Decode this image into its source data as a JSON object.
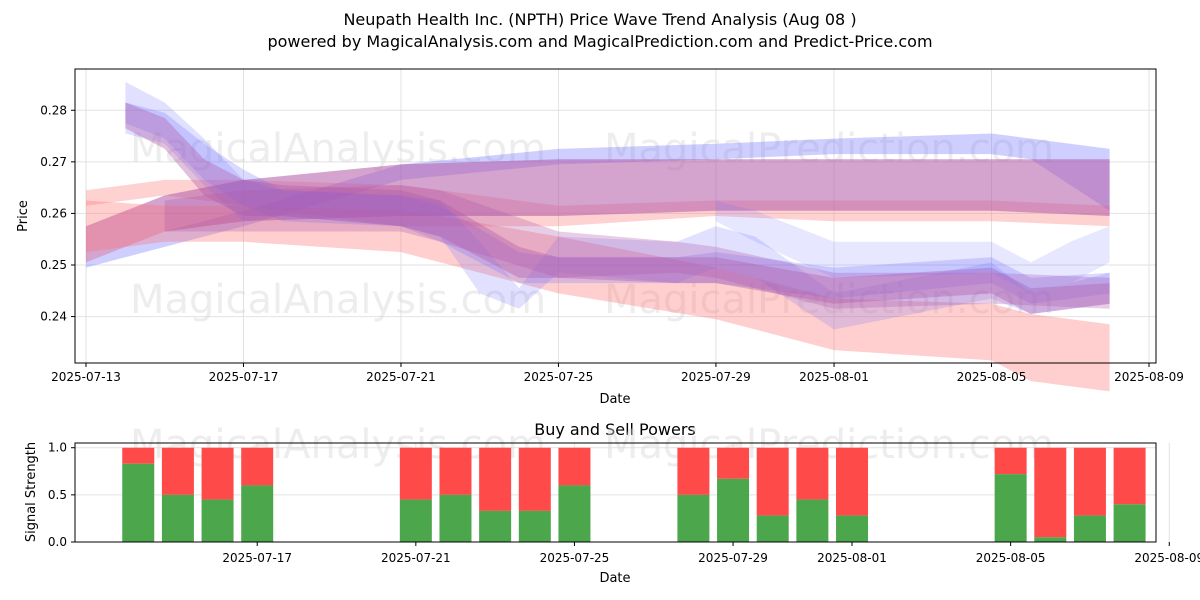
{
  "header": {
    "title": "Neupath Health Inc. (NPTH) Price Wave Trend Analysis (Aug 08 )",
    "subtitle": "powered by MagicalAnalysis.com and MagicalPrediction.com and Predict-Price.com"
  },
  "watermarks": [
    "MagicalAnalysis.com",
    "MagicalPrediction.com"
  ],
  "colors": {
    "buy": "#4ca64c",
    "sell": "#ff4a4a",
    "wave_blue": "#6b6bff",
    "wave_red": "#ff6b6b",
    "wave_purple": "#b05aa8"
  },
  "chart_data": [
    {
      "type": "area",
      "name": "price-wave",
      "xlabel": "Date",
      "ylabel": "Price",
      "x_ticks": [
        "2025-07-13",
        "2025-07-17",
        "2025-07-21",
        "2025-07-25",
        "2025-07-29",
        "2025-08-01",
        "2025-08-05",
        "2025-08-09"
      ],
      "y_ticks": [
        "0.24",
        "0.25",
        "0.26",
        "0.27",
        "0.28"
      ],
      "ylim": [
        0.231,
        0.288
      ],
      "grid": true,
      "bands": [
        {
          "color": "blue",
          "opacity": 0.32,
          "points": [
            [
              "2025-07-13",
              0.2505,
              0.2495
            ],
            [
              "2025-07-15",
              0.2565,
              0.2535
            ],
            [
              "2025-07-17",
              0.2605,
              0.2575
            ],
            [
              "2025-07-21",
              0.2695,
              0.2665
            ],
            [
              "2025-07-25",
              0.2725,
              0.2695
            ],
            [
              "2025-07-29",
              0.2735,
              0.2705
            ],
            [
              "2025-08-01",
              0.2745,
              0.2715
            ],
            [
              "2025-08-05",
              0.2755,
              0.2715
            ],
            [
              "2025-08-06",
              0.2745,
              0.2705
            ],
            [
              "2025-08-08",
              0.2725,
              0.2605
            ]
          ]
        },
        {
          "color": "red",
          "opacity": 0.3,
          "points": [
            [
              "2025-07-13",
              0.2645,
              0.2615
            ],
            [
              "2025-07-15",
              0.2665,
              0.2635
            ],
            [
              "2025-07-17",
              0.2665,
              0.2615
            ],
            [
              "2025-07-21",
              0.2655,
              0.2575
            ],
            [
              "2025-07-25",
              0.2615,
              0.2575
            ],
            [
              "2025-07-29",
              0.2625,
              0.2595
            ],
            [
              "2025-08-01",
              0.2625,
              0.2585
            ],
            [
              "2025-08-05",
              0.2625,
              0.2585
            ],
            [
              "2025-08-08",
              0.2615,
              0.2575
            ]
          ]
        },
        {
          "color": "purple",
          "opacity": 0.55,
          "points": [
            [
              "2025-07-13",
              0.2575,
              0.2505
            ],
            [
              "2025-07-15",
              0.2635,
              0.2565
            ],
            [
              "2025-07-17",
              0.2665,
              0.2585
            ],
            [
              "2025-07-21",
              0.2695,
              0.2595
            ],
            [
              "2025-07-25",
              0.2705,
              0.2595
            ],
            [
              "2025-07-29",
              0.2705,
              0.2605
            ],
            [
              "2025-08-01",
              0.2705,
              0.2605
            ],
            [
              "2025-08-05",
              0.2705,
              0.2605
            ],
            [
              "2025-08-08",
              0.2705,
              0.2595
            ]
          ]
        },
        {
          "color": "red",
          "opacity": 0.32,
          "points": [
            [
              "2025-07-13",
              0.2625,
              0.2525
            ],
            [
              "2025-07-15",
              0.2615,
              0.2545
            ],
            [
              "2025-07-17",
              0.2615,
              0.2545
            ],
            [
              "2025-07-21",
              0.2605,
              0.2525
            ],
            [
              "2025-07-22",
              0.2595,
              0.2505
            ],
            [
              "2025-07-25",
              0.2555,
              0.2445
            ],
            [
              "2025-07-29",
              0.2495,
              0.2395
            ],
            [
              "2025-08-01",
              0.2435,
              0.2335
            ],
            [
              "2025-08-05",
              0.2425,
              0.2315
            ],
            [
              "2025-08-06",
              0.2405,
              0.2275
            ],
            [
              "2025-08-08",
              0.2385,
              0.2255
            ]
          ]
        },
        {
          "color": "blue",
          "opacity": 0.2,
          "points": [
            [
              "2025-07-14",
              0.2855,
              0.2755
            ],
            [
              "2025-07-15",
              0.2815,
              0.2735
            ],
            [
              "2025-07-16",
              0.2745,
              0.2655
            ],
            [
              "2025-07-17",
              0.2665,
              0.2585
            ],
            [
              "2025-07-18",
              0.2645,
              0.2595
            ],
            [
              "2025-07-21",
              0.2635,
              0.2575
            ],
            [
              "2025-07-22",
              0.2625,
              0.2555
            ],
            [
              "2025-07-23",
              0.2545,
              0.2445
            ],
            [
              "2025-07-24",
              0.2455,
              0.2415
            ],
            [
              "2025-07-25",
              0.2555,
              0.2485
            ],
            [
              "2025-07-28",
              0.2545,
              0.2465
            ],
            [
              "2025-07-29",
              0.2575,
              0.2495
            ],
            [
              "2025-07-30",
              0.2555,
              0.2475
            ],
            [
              "2025-08-01",
              0.2445,
              0.2375
            ],
            [
              "2025-08-05",
              0.2505,
              0.2435
            ],
            [
              "2025-08-06",
              0.2445,
              0.2405
            ],
            [
              "2025-08-08",
              0.2485,
              0.2425
            ]
          ]
        },
        {
          "color": "blue",
          "opacity": 0.25,
          "points": [
            [
              "2025-07-14",
              0.2815,
              0.2775
            ],
            [
              "2025-07-15",
              0.2795,
              0.2745
            ],
            [
              "2025-07-16",
              0.2735,
              0.2665
            ],
            [
              "2025-07-17",
              0.2685,
              0.2615
            ],
            [
              "2025-07-18",
              0.2645,
              0.2585
            ],
            [
              "2025-07-21",
              0.2635,
              0.2575
            ],
            [
              "2025-07-22",
              0.2615,
              0.2545
            ],
            [
              "2025-07-24",
              0.2525,
              0.2465
            ],
            [
              "2025-07-25",
              0.2515,
              0.2465
            ],
            [
              "2025-07-28",
              0.2515,
              0.2465
            ],
            [
              "2025-07-29",
              0.2525,
              0.2465
            ],
            [
              "2025-08-01",
              0.2495,
              0.2435
            ],
            [
              "2025-08-05",
              0.2515,
              0.2465
            ],
            [
              "2025-08-06",
              0.2475,
              0.2425
            ],
            [
              "2025-08-08",
              0.2485,
              0.2445
            ]
          ]
        },
        {
          "color": "purple",
          "opacity": 0.38,
          "points": [
            [
              "2025-07-14",
              0.2815,
              0.2765
            ],
            [
              "2025-07-15",
              0.2785,
              0.2725
            ],
            [
              "2025-07-16",
              0.2705,
              0.2635
            ],
            [
              "2025-07-17",
              0.2665,
              0.2595
            ],
            [
              "2025-07-18",
              0.2655,
              0.2595
            ],
            [
              "2025-07-21",
              0.2645,
              0.2575
            ],
            [
              "2025-07-22",
              0.2625,
              0.2555
            ],
            [
              "2025-07-24",
              0.2535,
              0.2475
            ],
            [
              "2025-07-25",
              0.2515,
              0.2475
            ],
            [
              "2025-07-28",
              0.2515,
              0.2465
            ],
            [
              "2025-07-29",
              0.2515,
              0.2465
            ],
            [
              "2025-08-01",
              0.2475,
              0.2425
            ],
            [
              "2025-08-05",
              0.2495,
              0.2445
            ],
            [
              "2025-08-06",
              0.2455,
              0.2405
            ],
            [
              "2025-08-08",
              0.2465,
              0.2425
            ]
          ]
        },
        {
          "color": "purple",
          "opacity": 0.3,
          "points": [
            [
              "2025-07-15",
              0.2625,
              0.2565
            ],
            [
              "2025-07-17",
              0.2645,
              0.2565
            ],
            [
              "2025-07-21",
              0.2655,
              0.2565
            ],
            [
              "2025-07-22",
              0.2645,
              0.2545
            ],
            [
              "2025-07-25",
              0.2565,
              0.2475
            ],
            [
              "2025-07-28",
              0.2545,
              0.2485
            ],
            [
              "2025-07-29",
              0.2535,
              0.2475
            ],
            [
              "2025-08-01",
              0.2485,
              0.2415
            ],
            [
              "2025-08-05",
              0.2485,
              0.2425
            ],
            [
              "2025-08-08",
              0.2475,
              0.2415
            ]
          ]
        },
        {
          "color": "blue",
          "opacity": 0.16,
          "points": [
            [
              "2025-07-29",
              0.2625,
              0.2585
            ],
            [
              "2025-07-30",
              0.2605,
              0.2545
            ],
            [
              "2025-08-01",
              0.2545,
              0.2475
            ],
            [
              "2025-08-05",
              0.2545,
              0.2485
            ],
            [
              "2025-08-06",
              0.2505,
              0.2445
            ],
            [
              "2025-08-07",
              0.2545,
              0.2465
            ],
            [
              "2025-08-08",
              0.2575,
              0.2505
            ]
          ]
        }
      ]
    },
    {
      "type": "bar",
      "name": "buy-sell-powers",
      "title": "Buy and Sell Powers",
      "xlabel": "Date",
      "ylabel": "Signal Strength",
      "x_ticks": [
        "2025-07-17",
        "2025-07-21",
        "2025-07-25",
        "2025-07-29",
        "2025-08-01",
        "2025-08-05",
        "2025-08-09"
      ],
      "y_ticks": [
        "0.0",
        "0.5",
        "1.0"
      ],
      "ylim": [
        0,
        1.05
      ],
      "grid": true,
      "series_names": [
        "Buy",
        "Sell"
      ],
      "categories": [
        "2025-07-14",
        "2025-07-15",
        "2025-07-16",
        "2025-07-17",
        "2025-07-21",
        "2025-07-22",
        "2025-07-23",
        "2025-07-24",
        "2025-07-25",
        "2025-07-28",
        "2025-07-29",
        "2025-07-30",
        "2025-07-31",
        "2025-08-01",
        "2025-08-05",
        "2025-08-06",
        "2025-08-07",
        "2025-08-08"
      ],
      "buy": [
        0.83,
        0.5,
        0.45,
        0.6,
        0.45,
        0.5,
        0.33,
        0.33,
        0.6,
        0.5,
        0.67,
        0.28,
        0.45,
        0.28,
        0.72,
        0.05,
        0.28,
        0.4
      ]
    }
  ]
}
